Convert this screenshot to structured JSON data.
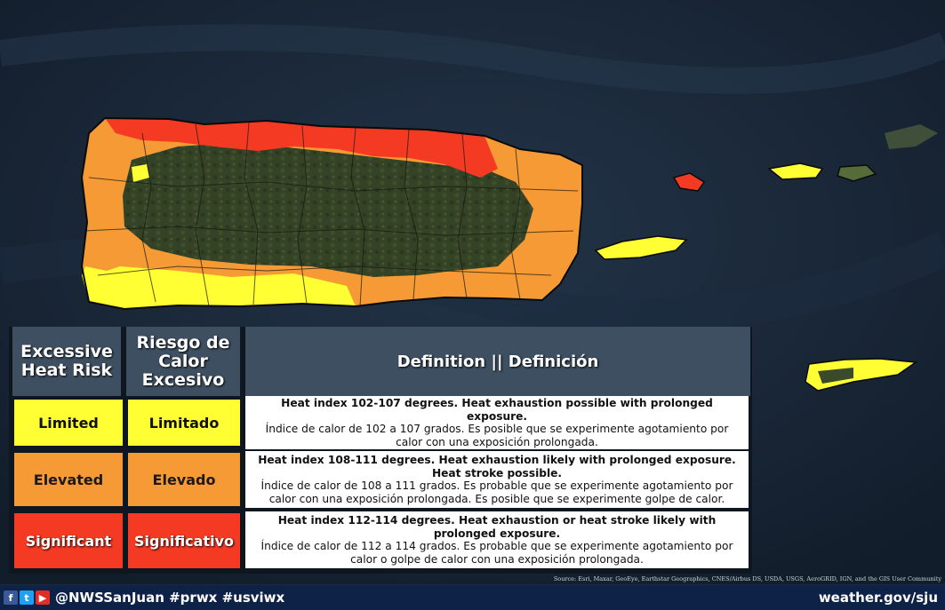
{
  "colors": {
    "limited": "#ffff33",
    "elevated": "#f59a35",
    "significant": "#f53a23",
    "forest": "#344226",
    "ocean": "#16263a",
    "header": "#3d4f61"
  },
  "legend": {
    "headers": {
      "en": "Excessive Heat Risk",
      "es": "Riesgo de Calor Excesivo",
      "definition": "Definition || Definición"
    },
    "rows": [
      {
        "level_en": "Limited",
        "level_es": "Limitado",
        "def_en": "Heat index 102-107 degrees. Heat exhaustion possible with prolonged exposure.",
        "def_es": "Índice de calor de 102 a 107 grados. Es posible que se experimente agotamiento por calor con una exposición prolongada."
      },
      {
        "level_en": "Elevated",
        "level_es": "Elevado",
        "def_en": "Heat index 108-111 degrees. Heat exhaustion likely with prolonged exposure. Heat stroke possible.",
        "def_es": "Índice de calor de 108 a 111 grados. Es probable que se experimente agotamiento por calor con una exposición prolongada. Es posible que se experimente golpe de calor."
      },
      {
        "level_en": "Significant",
        "level_es": "Significativo",
        "def_en": "Heat index 112-114 degrees. Heat exhaustion or heat stroke likely with prolonged exposure.",
        "def_es": "Índice de calor de 112 a 114 grados. Es probable que se experimente agotamiento por calor o golpe de calor con una exposición prolongada."
      }
    ]
  },
  "source": "Source: Esri, Maxar, GeoEye, Earthstar Geographics, CNES/Airbus DS, USDA, USGS, AeroGRID, IGN, and the GIS User Community",
  "footer": {
    "icons": [
      "facebook-icon",
      "twitter-icon",
      "youtube-icon"
    ],
    "handle": "@NWSSanJuan #prwx #usviwx",
    "site": "weather.gov/sju"
  }
}
